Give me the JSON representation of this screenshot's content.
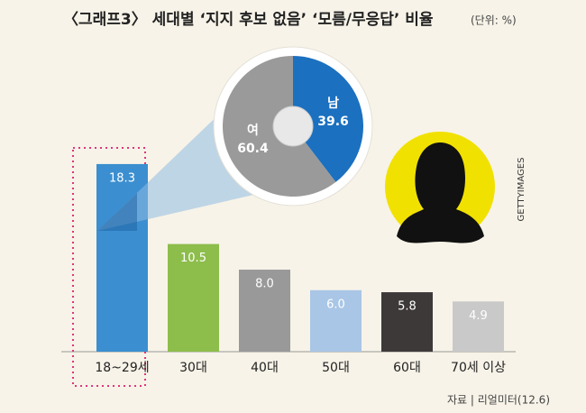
{
  "chart_data": [
    {
      "type": "bar",
      "title": "〈그래프3〉 세대별 ‘지지 후보 없음’ ‘모름/무응답’ 비율",
      "subtitle": "(단위: %)",
      "categories": [
        "18~29세",
        "30대",
        "40대",
        "50대",
        "60대",
        "70세 이상"
      ],
      "values": [
        18.3,
        10.5,
        8,
        6,
        5.8,
        4.9
      ],
      "value_labels": [
        "18.3",
        "10.5",
        "8.0",
        "6.0",
        "5.8",
        "4.9"
      ],
      "colors": [
        "#3b8fd0",
        "#8dbd4b",
        "#999999",
        "#a9c6e6",
        "#3d3939",
        "#c9c9c9"
      ]
    },
    {
      "type": "pie",
      "categories": [
        "남",
        "여"
      ],
      "values": [
        39.6,
        60.4
      ],
      "colors": [
        "#1b70c0",
        "#9a9a9a"
      ]
    }
  ],
  "image_credit": "GETTYIMAGES",
  "source": "자료 | 리얼미터(12.6)"
}
